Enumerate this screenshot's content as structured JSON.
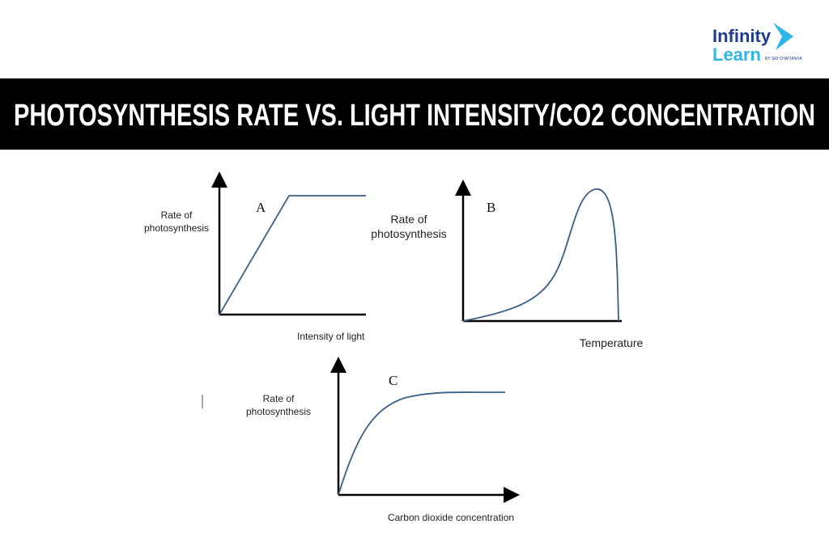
{
  "logo": {
    "line1": "Infinity",
    "line2": "Learn",
    "tagline": "BY SRI CHAITANYA"
  },
  "header": {
    "title": "PHOTOSYNTHESIS RATE VS. LIGHT INTENSITY/CO2 CONCENTRATION"
  },
  "panels": [
    {
      "letter": "A",
      "y_label": [
        "Rate of",
        "photosynthesis"
      ],
      "x_label": "Intensity of light"
    },
    {
      "letter": "B",
      "y_label": [
        "Rate of",
        "photosynthesis"
      ],
      "x_label": "Temperature"
    },
    {
      "letter": "C",
      "y_label": [
        "Rate of",
        "photosynthesis"
      ],
      "x_label": "Carbon dioxide concentration"
    }
  ]
}
